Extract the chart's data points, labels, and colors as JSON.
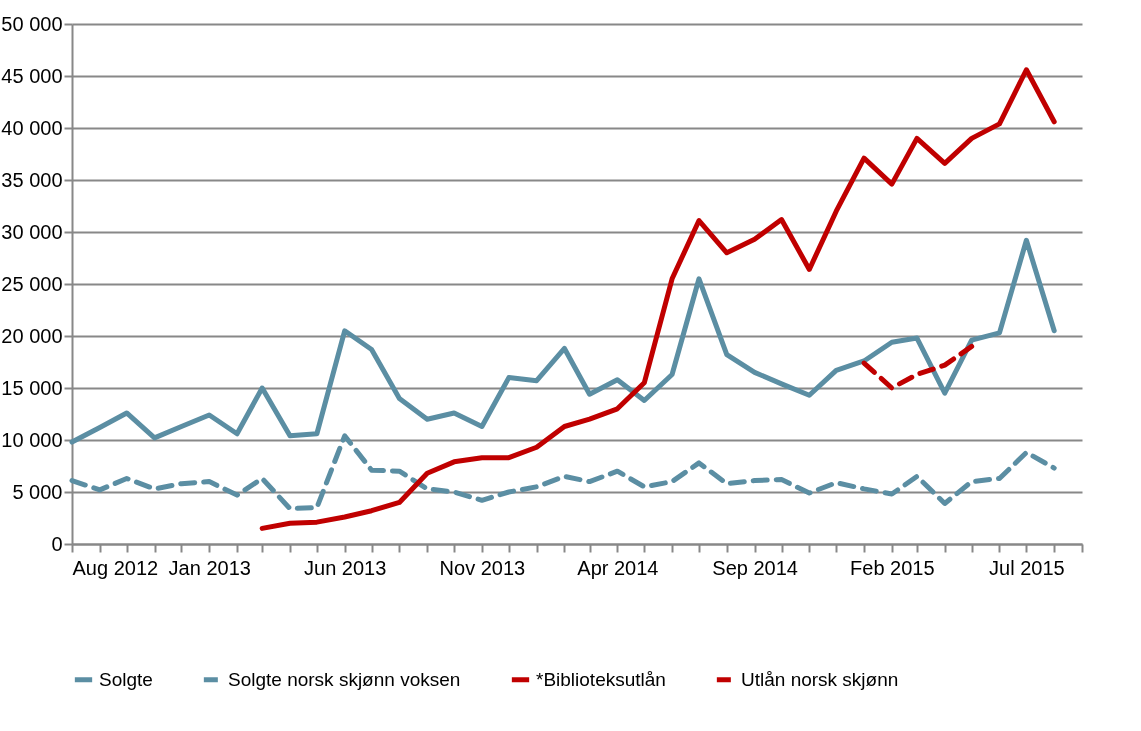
{
  "chart_data": {
    "type": "line",
    "x": [
      "2012-08",
      "2012-09",
      "2012-10",
      "2012-11",
      "2012-12",
      "2013-01",
      "2013-02",
      "2013-03",
      "2013-04",
      "2013-05",
      "2013-06",
      "2013-07",
      "2013-08",
      "2013-09",
      "2013-10",
      "2013-11",
      "2013-12",
      "2014-01",
      "2014-02",
      "2014-03",
      "2014-04",
      "2014-05",
      "2014-06",
      "2014-07",
      "2014-08",
      "2014-09",
      "2014-10",
      "2014-11",
      "2014-12",
      "2015-01",
      "2015-02",
      "2015-03",
      "2015-04",
      "2015-05",
      "2015-06",
      "2015-07",
      "2015-08"
    ],
    "series": [
      {
        "name": "Solgte",
        "color": "#5b8ea3",
        "line_style": "solid",
        "values": [
          9800,
          11200,
          12600,
          10200,
          11300,
          12400,
          10600,
          15000,
          10400,
          10600,
          20500,
          18700,
          14000,
          12000,
          12600,
          11300,
          16000,
          15700,
          18800,
          14400,
          15800,
          13800,
          16300,
          25500,
          18200,
          16500,
          15400,
          14300,
          16700,
          17600,
          19400,
          19800,
          14500,
          19600,
          20300,
          29200,
          20500
        ]
      },
      {
        "name": "Solgte norsk skjønn voksen",
        "color": "#5b8ea3",
        "line_style": "dashed",
        "values": [
          6100,
          5200,
          6300,
          5300,
          5800,
          6000,
          4700,
          6300,
          3400,
          3500,
          10400,
          7100,
          7000,
          5300,
          5000,
          4200,
          5000,
          5500,
          6500,
          6000,
          7000,
          5500,
          6000,
          7800,
          5800,
          6100,
          6200,
          4900,
          5900,
          5300,
          4800,
          6500,
          3900,
          6000,
          6300,
          8800,
          7300
        ]
      },
      {
        "name": "*Biblioteksutlån",
        "color": "#c00000",
        "line_style": "solid",
        "values": [
          null,
          null,
          null,
          null,
          null,
          null,
          null,
          1500,
          2000,
          2100,
          2600,
          3200,
          4000,
          6800,
          7900,
          8300,
          8300,
          9300,
          11300,
          12000,
          13000,
          15500,
          25500,
          31100,
          28000,
          29300,
          31200,
          26400,
          32000,
          37100,
          34600,
          39000,
          36600,
          39000,
          40400,
          45600,
          40600
        ]
      },
      {
        "name": "Utlån norsk skjønn",
        "color": "#c00000",
        "line_style": "dashed",
        "values": [
          null,
          null,
          null,
          null,
          null,
          null,
          null,
          null,
          null,
          null,
          null,
          null,
          null,
          null,
          null,
          null,
          null,
          null,
          null,
          null,
          null,
          null,
          null,
          null,
          null,
          null,
          null,
          null,
          null,
          17400,
          15000,
          16300,
          17200,
          19000,
          null,
          null,
          null
        ]
      }
    ],
    "xlim": [
      "2012-08",
      "2015-09"
    ],
    "xticks": [
      {
        "value": "2012-08",
        "label": "Aug 2012"
      },
      {
        "value": "2012-09",
        "label": null
      },
      {
        "value": "2012-10",
        "label": null
      },
      {
        "value": "2012-11",
        "label": null
      },
      {
        "value": "2012-12",
        "label": null
      },
      {
        "value": "2013-01",
        "label": "Jan 2013"
      },
      {
        "value": "2013-02",
        "label": null
      },
      {
        "value": "2013-03",
        "label": null
      },
      {
        "value": "2013-04",
        "label": null
      },
      {
        "value": "2013-05",
        "label": null
      },
      {
        "value": "2013-06",
        "label": "Jun 2013"
      },
      {
        "value": "2013-07",
        "label": null
      },
      {
        "value": "2013-08",
        "label": null
      },
      {
        "value": "2013-09",
        "label": null
      },
      {
        "value": "2013-10",
        "label": null
      },
      {
        "value": "2013-11",
        "label": "Nov 2013"
      },
      {
        "value": "2013-12",
        "label": null
      },
      {
        "value": "2014-01",
        "label": null
      },
      {
        "value": "2014-02",
        "label": null
      },
      {
        "value": "2014-03",
        "label": null
      },
      {
        "value": "2014-04",
        "label": "Apr 2014"
      },
      {
        "value": "2014-05",
        "label": null
      },
      {
        "value": "2014-06",
        "label": null
      },
      {
        "value": "2014-07",
        "label": null
      },
      {
        "value": "2014-08",
        "label": null
      },
      {
        "value": "2014-09",
        "label": "Sep 2014"
      },
      {
        "value": "2014-10",
        "label": null
      },
      {
        "value": "2014-11",
        "label": null
      },
      {
        "value": "2014-12",
        "label": null
      },
      {
        "value": "2015-01",
        "label": null
      },
      {
        "value": "2015-02",
        "label": "Feb 2015"
      },
      {
        "value": "2015-03",
        "label": null
      },
      {
        "value": "2015-04",
        "label": null
      },
      {
        "value": "2015-05",
        "label": null
      },
      {
        "value": "2015-06",
        "label": null
      },
      {
        "value": "2015-07",
        "label": "Jul 2015"
      },
      {
        "value": "2015-08",
        "label": null
      },
      {
        "value": "2015-09",
        "label": null
      }
    ],
    "ylim": [
      0,
      50000
    ],
    "yticks": [
      {
        "value": 0,
        "label": "0"
      },
      {
        "value": 5000,
        "label": "5 000"
      },
      {
        "value": 10000,
        "label": "10 000"
      },
      {
        "value": 15000,
        "label": "15 000"
      },
      {
        "value": 20000,
        "label": "20 000"
      },
      {
        "value": 25000,
        "label": "25 000"
      },
      {
        "value": 30000,
        "label": "30 000"
      },
      {
        "value": 35000,
        "label": "35 000"
      },
      {
        "value": 40000,
        "label": "40 000"
      },
      {
        "value": 45000,
        "label": "45 000"
      },
      {
        "value": 50000,
        "label": "50 000"
      }
    ],
    "grid": "y",
    "legend": "bottom"
  }
}
